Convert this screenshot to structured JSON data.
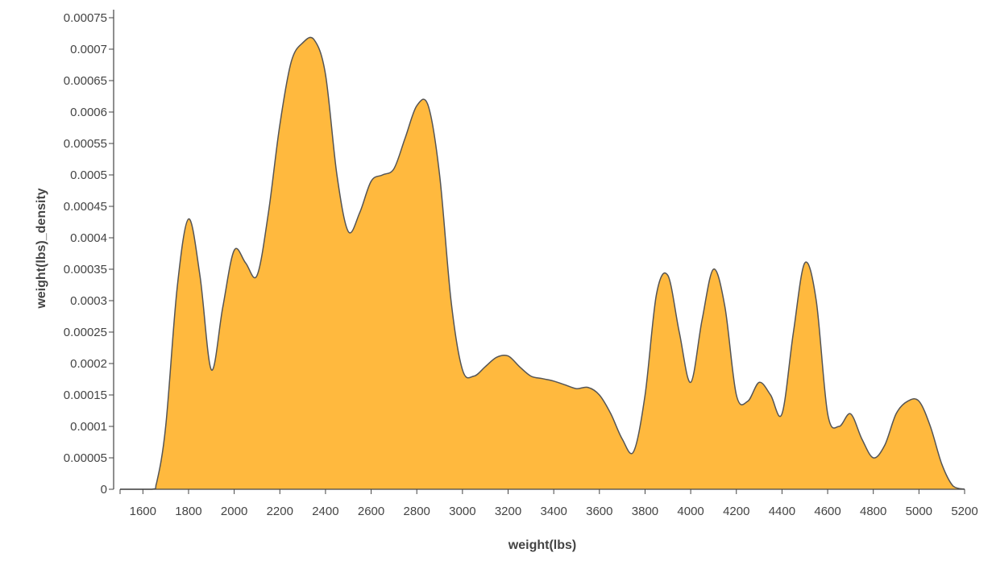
{
  "chart_data": {
    "type": "area",
    "title": "",
    "xlabel": "weight(lbs)",
    "ylabel": "weight(lbs)_density",
    "xlim": [
      1500,
      5200
    ],
    "ylim": [
      0,
      0.00076
    ],
    "x_ticks": [
      "1600",
      "1800",
      "2000",
      "2200",
      "2400",
      "2600",
      "2800",
      "3000",
      "3200",
      "3400",
      "3600",
      "3800",
      "4000",
      "4200",
      "4400",
      "4600",
      "4800",
      "5000",
      "5200"
    ],
    "y_ticks": [
      "0",
      "0.00005",
      "0.0001",
      "0.00015",
      "0.0002",
      "0.00025",
      "0.0003",
      "0.00035",
      "0.0004",
      "0.00045",
      "0.0005",
      "0.00055",
      "0.0006",
      "0.00065",
      "0.0007",
      "0.00075"
    ],
    "fill_color": "#ffb93e",
    "line_color": "#555555",
    "grid": false,
    "legend": "none",
    "series": [
      {
        "x": [
          1500,
          1640,
          1660,
          1700,
          1750,
          1800,
          1850,
          1900,
          1950,
          2000,
          2050,
          2100,
          2150,
          2200,
          2250,
          2300,
          2350,
          2400,
          2450,
          2500,
          2550,
          2600,
          2650,
          2700,
          2750,
          2800,
          2850,
          2900,
          2950,
          3000,
          3050,
          3100,
          3150,
          3200,
          3250,
          3300,
          3350,
          3400,
          3450,
          3500,
          3550,
          3600,
          3650,
          3700,
          3750,
          3800,
          3850,
          3900,
          3950,
          4000,
          4050,
          4100,
          4150,
          4200,
          4250,
          4300,
          4350,
          4400,
          4450,
          4500,
          4550,
          4600,
          4650,
          4700,
          4750,
          4800,
          4850,
          4900,
          4950,
          5000,
          5050,
          5100,
          5150,
          5200
        ],
        "y": [
          0,
          0,
          1e-05,
          0.0001,
          0.00032,
          0.00043,
          0.00034,
          0.00019,
          0.00029,
          0.00038,
          0.00036,
          0.00034,
          0.00044,
          0.00058,
          0.00068,
          0.00071,
          0.000715,
          0.00066,
          0.0005,
          0.00041,
          0.00044,
          0.00049,
          0.0005,
          0.00051,
          0.00056,
          0.00061,
          0.00061,
          0.0005,
          0.0003,
          0.00019,
          0.00018,
          0.000195,
          0.00021,
          0.000212,
          0.000195,
          0.00018,
          0.000176,
          0.000172,
          0.000166,
          0.00016,
          0.000162,
          0.00015,
          0.00012,
          8e-05,
          6e-05,
          0.00015,
          0.00031,
          0.00034,
          0.00025,
          0.00017,
          0.00027,
          0.00035,
          0.00029,
          0.00015,
          0.00014,
          0.00017,
          0.00015,
          0.00012,
          0.00025,
          0.00036,
          0.0003,
          0.00012,
          0.0001,
          0.00012,
          8e-05,
          5e-05,
          7e-05,
          0.00012,
          0.00014,
          0.00014,
          0.0001,
          4e-05,
          5e-06,
          0
        ]
      }
    ]
  }
}
